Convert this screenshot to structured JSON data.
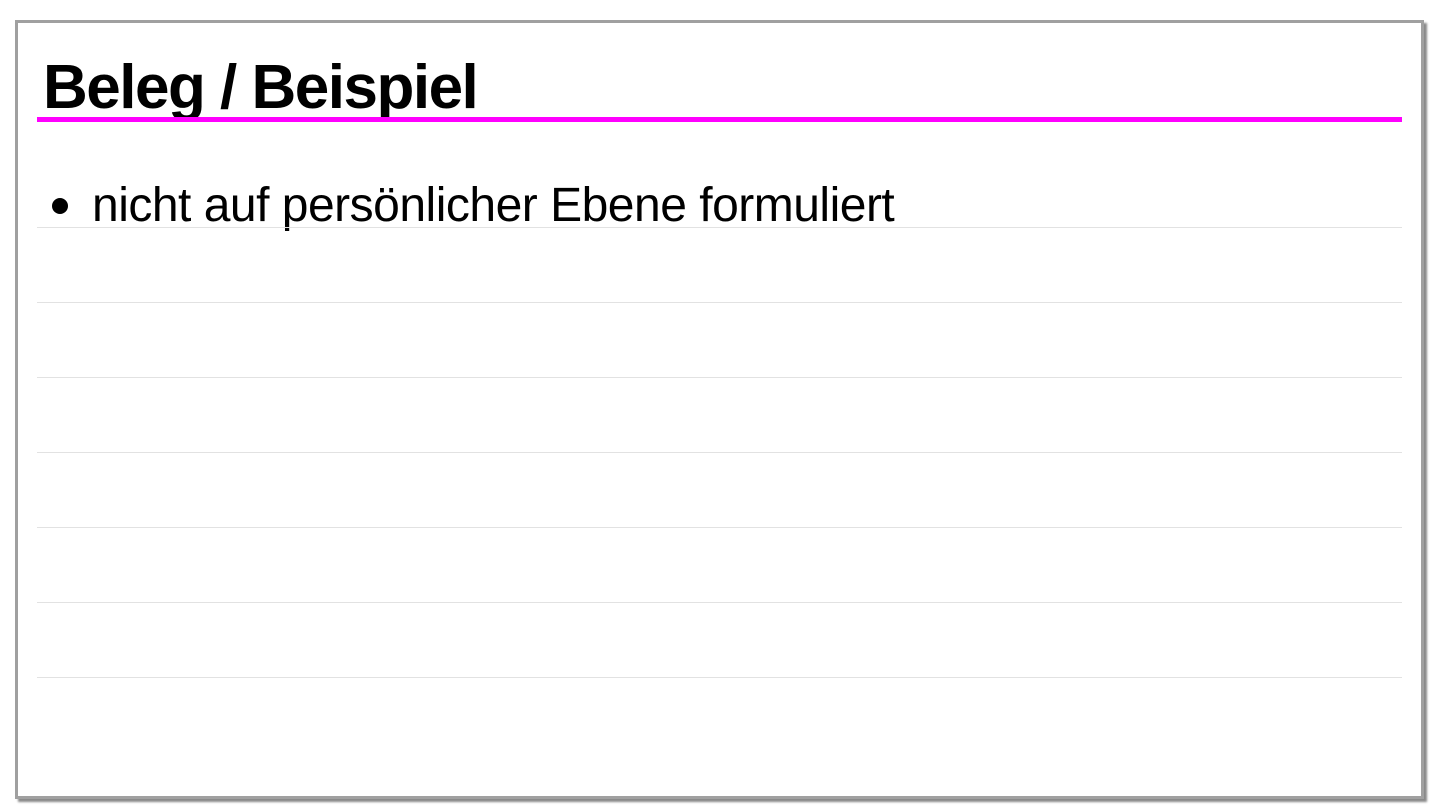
{
  "slide": {
    "title": "Beleg / Beispiel",
    "accent_color": "#ff00ff",
    "bullets": [
      {
        "text": "nicht auf persönlicher Ebene formuliert"
      }
    ],
    "ruled_line_count": 7
  }
}
